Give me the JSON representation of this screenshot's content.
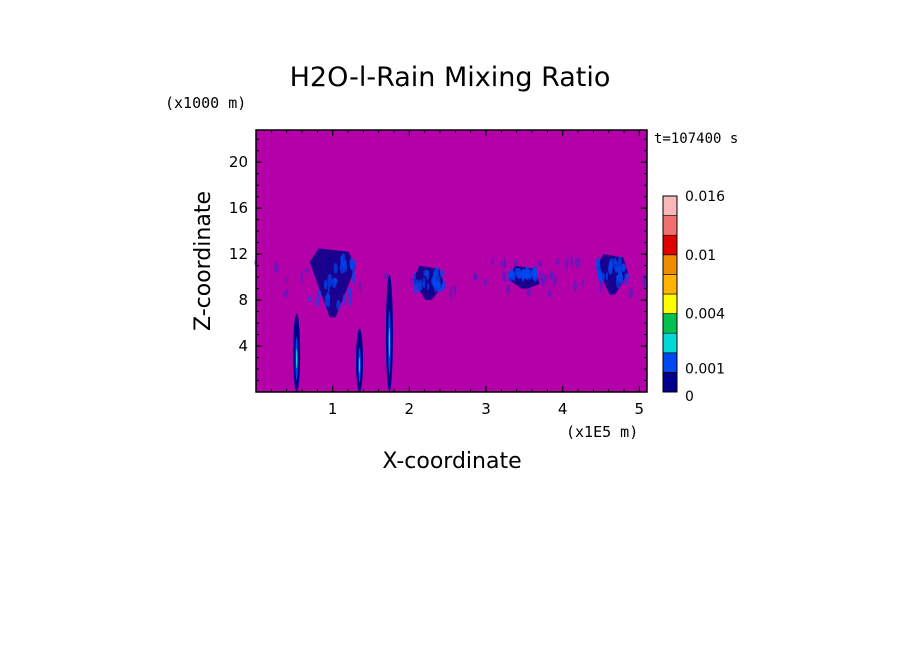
{
  "chart_data": {
    "type": "heatmap",
    "title": "H2O-l-Rain Mixing Ratio",
    "xlabel": "X-coordinate",
    "ylabel": "Z-coordinate",
    "x_unit": "(x1E5 m)",
    "y_unit": "(x1000 m)",
    "time_label": "t=107400 s",
    "xlim": [
      0,
      5.1
    ],
    "ylim": [
      0,
      22.8
    ],
    "x_ticks": [
      1,
      2,
      3,
      4,
      5
    ],
    "x_tick_labels": [
      "1",
      "2",
      "3",
      "4",
      "5"
    ],
    "y_ticks": [
      4,
      8,
      12,
      16,
      20
    ],
    "y_tick_labels": [
      "4",
      "8",
      "12",
      "16",
      "20"
    ],
    "grid": false,
    "background_value": "below 0 (magenta fill)",
    "colorbar": {
      "levels": [
        0,
        0.001,
        0.002,
        0.003,
        0.004,
        0.006,
        0.008,
        0.01,
        0.012,
        0.014,
        0.016
      ],
      "labeled_levels": [
        "0",
        "0.001",
        "0.004",
        "0.01",
        "0.016"
      ],
      "colors": [
        "#00008c",
        "#0048f0",
        "#00d8d8",
        "#00c050",
        "#ffff00",
        "#ffb400",
        "#f08c00",
        "#e00000",
        "#f07070",
        "#f8b8b8"
      ]
    },
    "features": [
      {
        "kind": "upper rain band",
        "x": [
          0.0,
          5.1
        ],
        "z": [
          8,
          12
        ]
      },
      {
        "kind": "cloud",
        "x_center": 1.0,
        "z_range": [
          6.5,
          12.5
        ]
      },
      {
        "kind": "cloud",
        "x_center": 2.25,
        "z_range": [
          8,
          11
        ]
      },
      {
        "kind": "cloud",
        "x_center": 3.5,
        "z_range": [
          9,
          11
        ]
      },
      {
        "kind": "cloud",
        "x_center": 4.65,
        "z_range": [
          8.5,
          12
        ]
      },
      {
        "kind": "rain shaft",
        "x_center": 0.53,
        "z_range": [
          0,
          6.8
        ]
      },
      {
        "kind": "rain shaft",
        "x_center": 1.35,
        "z_range": [
          0,
          5.5
        ]
      },
      {
        "kind": "rain shaft",
        "x_center": 1.74,
        "z_range": [
          0,
          10.2
        ]
      }
    ]
  }
}
